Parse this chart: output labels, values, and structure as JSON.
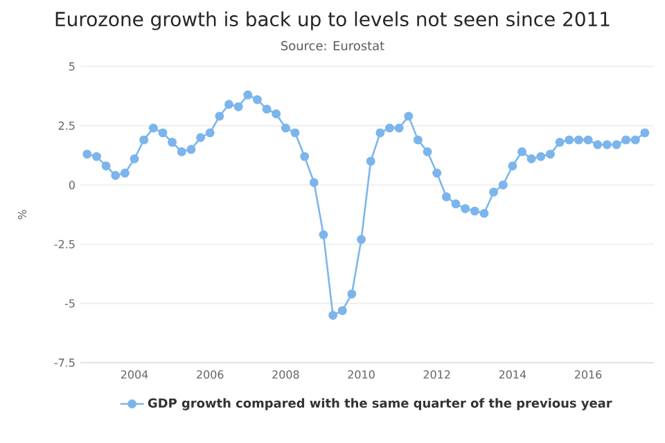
{
  "chart_data": {
    "type": "line",
    "title": "Eurozone growth is back up to levels not seen since 2011",
    "subtitle": "Source: Eurostat",
    "ylabel": "%",
    "x": [
      2002.75,
      2003.0,
      2003.25,
      2003.5,
      2003.75,
      2004.0,
      2004.25,
      2004.5,
      2004.75,
      2005.0,
      2005.25,
      2005.5,
      2005.75,
      2006.0,
      2006.25,
      2006.5,
      2006.75,
      2007.0,
      2007.25,
      2007.5,
      2007.75,
      2008.0,
      2008.25,
      2008.5,
      2008.75,
      2009.0,
      2009.25,
      2009.5,
      2009.75,
      2010.0,
      2010.25,
      2010.5,
      2010.75,
      2011.0,
      2011.25,
      2011.5,
      2011.75,
      2012.0,
      2012.25,
      2012.5,
      2012.75,
      2013.0,
      2013.25,
      2013.5,
      2013.75,
      2014.0,
      2014.25,
      2014.5,
      2014.75,
      2015.0,
      2015.25,
      2015.5,
      2015.75,
      2016.0,
      2016.25,
      2016.5,
      2016.75,
      2017.0,
      2017.25,
      2017.5
    ],
    "series": [
      {
        "name": "GDP growth compared with the same quarter of the previous year",
        "color": "#7cb5ec",
        "values": [
          1.3,
          1.2,
          0.8,
          0.4,
          0.5,
          1.1,
          1.9,
          2.4,
          2.2,
          1.8,
          1.4,
          1.5,
          2.0,
          2.2,
          2.9,
          3.4,
          3.3,
          3.8,
          3.6,
          3.2,
          3.0,
          2.4,
          2.2,
          1.2,
          0.1,
          -2.1,
          -5.5,
          -5.3,
          -4.6,
          -2.3,
          1.0,
          2.2,
          2.4,
          2.4,
          2.9,
          1.9,
          1.4,
          0.5,
          -0.5,
          -0.8,
          -1.0,
          -1.1,
          -1.2,
          -0.3,
          0.0,
          0.8,
          1.4,
          1.1,
          1.2,
          1.3,
          1.8,
          1.9,
          1.9,
          1.9,
          1.7,
          1.7,
          1.7,
          1.9,
          1.9,
          2.2
        ]
      }
    ],
    "xlim": [
      2002.57,
      2017.74
    ],
    "ylim": [
      -7.5,
      5
    ],
    "xticks": [
      2004,
      2006,
      2008,
      2010,
      2012,
      2014,
      2016
    ],
    "yticks": [
      -7.5,
      -5,
      -2.5,
      0,
      2.5,
      5
    ],
    "grid": "y",
    "legend": "bottom",
    "marker": "circle",
    "line_style": "solid"
  }
}
